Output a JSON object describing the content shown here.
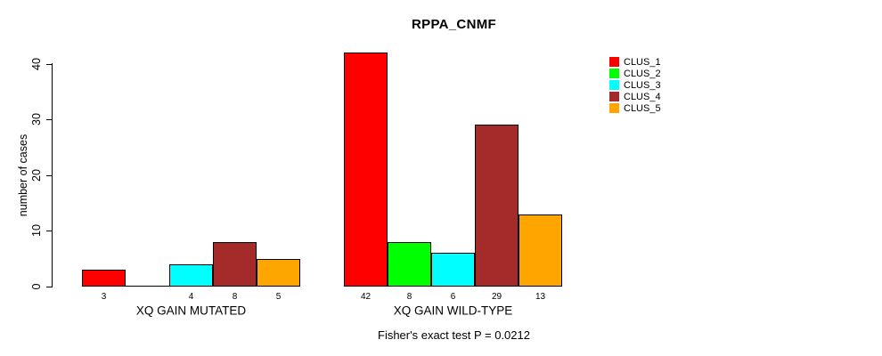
{
  "chart_data": {
    "type": "bar",
    "title": "RPPA_CNMF",
    "ylabel": "number of cases",
    "xlabel": "",
    "ylim": [
      0,
      40
    ],
    "yticks": [
      0,
      10,
      20,
      30,
      40
    ],
    "grid": false,
    "background_color": "#FFFFFF",
    "axis_color": "#000000",
    "legend_position": "right-of-plot-top",
    "categories": [
      "XQ GAIN MUTATED",
      "XQ GAIN WILD-TYPE"
    ],
    "series": [
      {
        "name": "CLUS_1",
        "color": "#FF0000",
        "values": [
          3,
          42
        ]
      },
      {
        "name": "CLUS_2",
        "color": "#00FF00",
        "values": [
          0,
          8
        ]
      },
      {
        "name": "CLUS_3",
        "color": "#00FFFF",
        "values": [
          4,
          6
        ]
      },
      {
        "name": "CLUS_4",
        "color": "#A52A2A",
        "values": [
          8,
          29
        ]
      },
      {
        "name": "CLUS_5",
        "color": "#FFA500",
        "values": [
          5,
          13
        ]
      }
    ],
    "bar_value_labels": [
      [
        "3",
        "",
        "4",
        "8",
        "5"
      ],
      [
        "42",
        "8",
        "6",
        "29",
        "13"
      ]
    ],
    "annotation": "Fisher's exact test P = 0.0212"
  }
}
